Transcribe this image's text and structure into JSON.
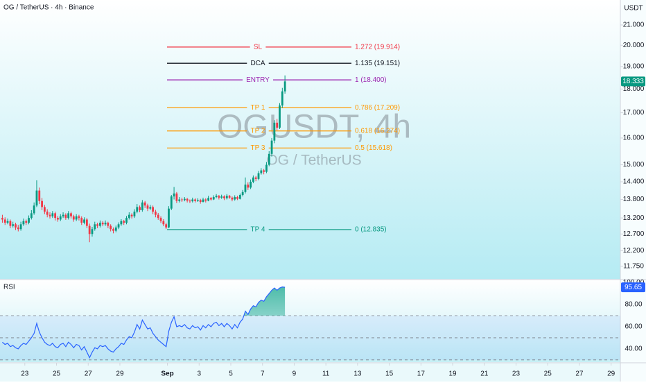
{
  "chart_data": [
    {
      "type": "candlestick",
      "title": "OG / TetherUS · 4h · Binance",
      "watermark": "OGUSDT, 4h",
      "subtitle": "OG / TetherUS",
      "currency": "USDT",
      "log": true,
      "grid": false,
      "up_color": "#089981",
      "down_color": "#f23645",
      "ylim": [
        11.4,
        22.3
      ],
      "yticks": [
        {
          "value": 21,
          "label": "21.000"
        },
        {
          "value": 20,
          "label": "20.000"
        },
        {
          "value": 19,
          "label": "19.000"
        },
        {
          "value": 18,
          "label": "18.000"
        },
        {
          "value": 17,
          "label": "17.000"
        },
        {
          "value": 16,
          "label": "16.000"
        },
        {
          "value": 15,
          "label": "15.000"
        },
        {
          "value": 14.4,
          "label": "14.400"
        },
        {
          "value": 13.8,
          "label": "13.800"
        },
        {
          "value": 13.2,
          "label": "13.200"
        },
        {
          "value": 12.7,
          "label": "12.700"
        },
        {
          "value": 12.2,
          "label": "12.200"
        },
        {
          "value": 11.75,
          "label": "11.750"
        }
      ],
      "xlim": [
        -0.9,
        234
      ],
      "xticks": [
        {
          "value": 8.5,
          "label": "23"
        },
        {
          "value": 20.5,
          "label": "25"
        },
        {
          "value": 32.5,
          "label": "27"
        },
        {
          "value": 44.5,
          "label": "29"
        },
        {
          "value": 62.5,
          "label": "Sep"
        },
        {
          "value": 74.5,
          "label": "3"
        },
        {
          "value": 86.5,
          "label": "5"
        },
        {
          "value": 98.5,
          "label": "7"
        },
        {
          "value": 110.5,
          "label": "9"
        },
        {
          "value": 122.5,
          "label": "11"
        },
        {
          "value": 134.5,
          "label": "13"
        },
        {
          "value": 146.5,
          "label": "15"
        },
        {
          "value": 158.5,
          "label": "17"
        },
        {
          "value": 170.5,
          "label": "19"
        },
        {
          "value": 182.5,
          "label": "21"
        },
        {
          "value": 194.5,
          "label": "23"
        },
        {
          "value": 206.5,
          "label": "25"
        },
        {
          "value": 218.5,
          "label": "27"
        },
        {
          "value": 230.5,
          "label": "29"
        }
      ],
      "levels": [
        {
          "name": "SL",
          "label": "1.272 (19.914)",
          "price": 19.914,
          "color": "#f23645"
        },
        {
          "name": "DCA",
          "label": "1.135 (19.151)",
          "price": 19.151,
          "color": "#131722"
        },
        {
          "name": "ENTRY",
          "label": "1 (18.400)",
          "price": 18.4,
          "color": "#9c27b0"
        },
        {
          "name": "TP 1",
          "label": "0.786 (17.209)",
          "price": 17.209,
          "color": "#ff9800"
        },
        {
          "name": "TP 2",
          "label": "0.618 (16.274)",
          "price": 16.274,
          "color": "#ff9800"
        },
        {
          "name": "TP 3",
          "label": "0.5 (15.618)",
          "price": 15.618,
          "color": "#ff9800"
        },
        {
          "name": "TP 4",
          "label": "0 (12.835)",
          "price": 12.835,
          "color": "#089981"
        }
      ],
      "ohlc": [
        [
          13.2,
          13.3,
          13.05,
          13.15
        ],
        [
          13.15,
          13.22,
          12.98,
          13.05
        ],
        [
          13.05,
          13.18,
          13.0,
          13.1
        ],
        [
          13.1,
          13.15,
          12.88,
          12.95
        ],
        [
          12.95,
          13.08,
          12.9,
          13.0
        ],
        [
          13.0,
          13.05,
          12.82,
          12.9
        ],
        [
          12.9,
          12.98,
          12.78,
          12.85
        ],
        [
          12.85,
          13.08,
          12.8,
          13.0
        ],
        [
          13.0,
          13.18,
          12.95,
          13.1
        ],
        [
          13.1,
          13.15,
          12.98,
          13.05
        ],
        [
          13.05,
          13.28,
          13.0,
          13.2
        ],
        [
          13.2,
          13.45,
          13.15,
          13.35
        ],
        [
          13.35,
          13.7,
          13.3,
          13.6
        ],
        [
          13.6,
          14.45,
          13.55,
          14.1
        ],
        [
          14.1,
          14.2,
          13.65,
          13.75
        ],
        [
          13.75,
          13.85,
          13.45,
          13.55
        ],
        [
          13.55,
          13.62,
          13.32,
          13.4
        ],
        [
          13.4,
          13.48,
          13.22,
          13.3
        ],
        [
          13.3,
          13.38,
          13.18,
          13.25
        ],
        [
          13.25,
          13.42,
          13.2,
          13.35
        ],
        [
          13.35,
          13.4,
          13.12,
          13.2
        ],
        [
          13.2,
          13.26,
          13.08,
          13.15
        ],
        [
          13.15,
          13.32,
          13.1,
          13.25
        ],
        [
          13.25,
          13.38,
          13.2,
          13.3
        ],
        [
          13.3,
          13.35,
          13.14,
          13.2
        ],
        [
          13.2,
          13.42,
          13.15,
          13.35
        ],
        [
          13.35,
          13.4,
          13.18,
          13.25
        ],
        [
          13.25,
          13.3,
          13.08,
          13.15
        ],
        [
          13.15,
          13.32,
          13.1,
          13.25
        ],
        [
          13.25,
          13.3,
          13.12,
          13.2
        ],
        [
          13.2,
          13.25,
          12.98,
          13.05
        ],
        [
          13.05,
          13.22,
          13.0,
          13.15
        ],
        [
          13.15,
          13.2,
          12.88,
          12.95
        ],
        [
          12.95,
          13.02,
          12.45,
          12.7
        ],
        [
          12.7,
          12.92,
          12.62,
          12.85
        ],
        [
          12.85,
          13.08,
          12.8,
          13.0
        ],
        [
          13.0,
          13.05,
          12.88,
          12.95
        ],
        [
          12.95,
          13.12,
          12.9,
          13.05
        ],
        [
          13.05,
          13.1,
          12.94,
          13.0
        ],
        [
          13.0,
          13.12,
          12.95,
          13.05
        ],
        [
          13.05,
          13.08,
          12.88,
          12.95
        ],
        [
          12.95,
          13.0,
          12.78,
          12.85
        ],
        [
          12.85,
          12.9,
          12.72,
          12.8
        ],
        [
          12.8,
          12.96,
          12.75,
          12.9
        ],
        [
          12.9,
          13.06,
          12.85,
          13.0
        ],
        [
          13.0,
          13.16,
          12.95,
          13.1
        ],
        [
          13.1,
          13.14,
          12.98,
          13.05
        ],
        [
          13.05,
          13.26,
          13.0,
          13.2
        ],
        [
          13.2,
          13.38,
          13.15,
          13.3
        ],
        [
          13.3,
          13.35,
          13.18,
          13.25
        ],
        [
          13.25,
          13.48,
          13.2,
          13.4
        ],
        [
          13.4,
          13.65,
          13.35,
          13.55
        ],
        [
          13.55,
          13.6,
          13.38,
          13.45
        ],
        [
          13.45,
          13.78,
          13.4,
          13.7
        ],
        [
          13.7,
          13.75,
          13.52,
          13.6
        ],
        [
          13.6,
          13.66,
          13.42,
          13.5
        ],
        [
          13.5,
          13.62,
          13.45,
          13.55
        ],
        [
          13.55,
          13.6,
          13.32,
          13.4
        ],
        [
          13.4,
          13.46,
          13.22,
          13.3
        ],
        [
          13.3,
          13.36,
          13.14,
          13.2
        ],
        [
          13.2,
          13.25,
          13.04,
          13.1
        ],
        [
          13.1,
          13.16,
          12.94,
          13.0
        ],
        [
          13.0,
          13.05,
          12.85,
          12.9
        ],
        [
          12.9,
          13.58,
          12.88,
          13.5
        ],
        [
          13.5,
          13.95,
          13.45,
          13.9
        ],
        [
          13.9,
          14.22,
          13.8,
          14.0
        ],
        [
          14.0,
          14.05,
          13.68,
          13.75
        ],
        [
          13.75,
          13.88,
          13.7,
          13.8
        ],
        [
          13.8,
          13.86,
          13.72,
          13.78
        ],
        [
          13.78,
          13.88,
          13.74,
          13.82
        ],
        [
          13.82,
          13.85,
          13.7,
          13.76
        ],
        [
          13.76,
          13.8,
          13.68,
          13.74
        ],
        [
          13.74,
          13.86,
          13.7,
          13.8
        ],
        [
          13.8,
          13.84,
          13.7,
          13.75
        ],
        [
          13.75,
          13.84,
          13.72,
          13.78
        ],
        [
          13.78,
          13.82,
          13.66,
          13.72
        ],
        [
          13.72,
          13.86,
          13.7,
          13.8
        ],
        [
          13.8,
          13.84,
          13.7,
          13.76
        ],
        [
          13.76,
          13.92,
          13.74,
          13.85
        ],
        [
          13.85,
          13.88,
          13.76,
          13.8
        ],
        [
          13.8,
          13.94,
          13.78,
          13.88
        ],
        [
          13.88,
          13.98,
          13.84,
          13.92
        ],
        [
          13.92,
          13.95,
          13.8,
          13.86
        ],
        [
          13.86,
          13.96,
          13.82,
          13.9
        ],
        [
          13.9,
          13.94,
          13.78,
          13.84
        ],
        [
          13.84,
          13.98,
          13.8,
          13.92
        ],
        [
          13.92,
          13.95,
          13.82,
          13.86
        ],
        [
          13.86,
          13.9,
          13.74,
          13.8
        ],
        [
          13.8,
          13.94,
          13.76,
          13.88
        ],
        [
          13.88,
          13.92,
          13.78,
          13.82
        ],
        [
          13.82,
          14.0,
          13.8,
          13.95
        ],
        [
          13.95,
          14.12,
          13.9,
          14.05
        ],
        [
          14.05,
          14.55,
          14.0,
          14.3
        ],
        [
          14.3,
          14.38,
          14.12,
          14.2
        ],
        [
          14.2,
          14.48,
          14.15,
          14.4
        ],
        [
          14.4,
          14.62,
          14.35,
          14.55
        ],
        [
          14.55,
          14.6,
          14.42,
          14.5
        ],
        [
          14.5,
          14.78,
          14.45,
          14.7
        ],
        [
          14.7,
          14.88,
          14.65,
          14.8
        ],
        [
          14.8,
          14.85,
          14.66,
          14.75
        ],
        [
          14.75,
          15.1,
          14.7,
          15.0
        ],
        [
          15.0,
          15.5,
          14.95,
          15.4
        ],
        [
          15.4,
          16.0,
          15.3,
          15.9
        ],
        [
          15.9,
          16.7,
          15.8,
          16.6
        ],
        [
          16.6,
          16.75,
          16.3,
          16.4
        ],
        [
          16.4,
          17.4,
          16.35,
          17.3
        ],
        [
          17.3,
          18.05,
          17.2,
          17.9
        ],
        [
          17.9,
          18.6,
          17.8,
          18.333
        ]
      ]
    },
    {
      "type": "line",
      "title": "RSI",
      "color": "#2962ff",
      "ylim": [
        28,
        102
      ],
      "levels": [
        70,
        50,
        30
      ],
      "yticks": [
        {
          "value": 100,
          "label": "100.00"
        },
        {
          "value": 80,
          "label": "80.00"
        },
        {
          "value": 60,
          "label": "60.00"
        },
        {
          "value": 40,
          "label": "40.00"
        }
      ],
      "values": [
        46,
        44,
        45,
        42,
        43,
        41,
        40,
        43,
        45,
        44,
        47,
        50,
        54,
        63,
        55,
        50,
        46,
        44,
        43,
        45,
        42,
        41,
        44,
        45,
        42,
        46,
        44,
        41,
        44,
        43,
        39,
        42,
        37,
        32,
        37,
        41,
        40,
        43,
        42,
        43,
        40,
        38,
        37,
        40,
        42,
        45,
        44,
        48,
        51,
        50,
        55,
        62,
        58,
        66,
        62,
        58,
        59,
        54,
        51,
        48,
        46,
        44,
        42,
        56,
        64,
        69,
        60,
        61,
        60,
        62,
        59,
        58,
        61,
        59,
        60,
        57,
        61,
        59,
        62,
        60,
        63,
        64,
        61,
        63,
        60,
        63,
        61,
        58,
        62,
        59,
        64,
        67,
        74,
        71,
        76,
        79,
        78,
        82,
        84,
        83,
        87,
        90,
        93,
        95,
        93,
        95,
        96,
        95.65
      ]
    }
  ]
}
